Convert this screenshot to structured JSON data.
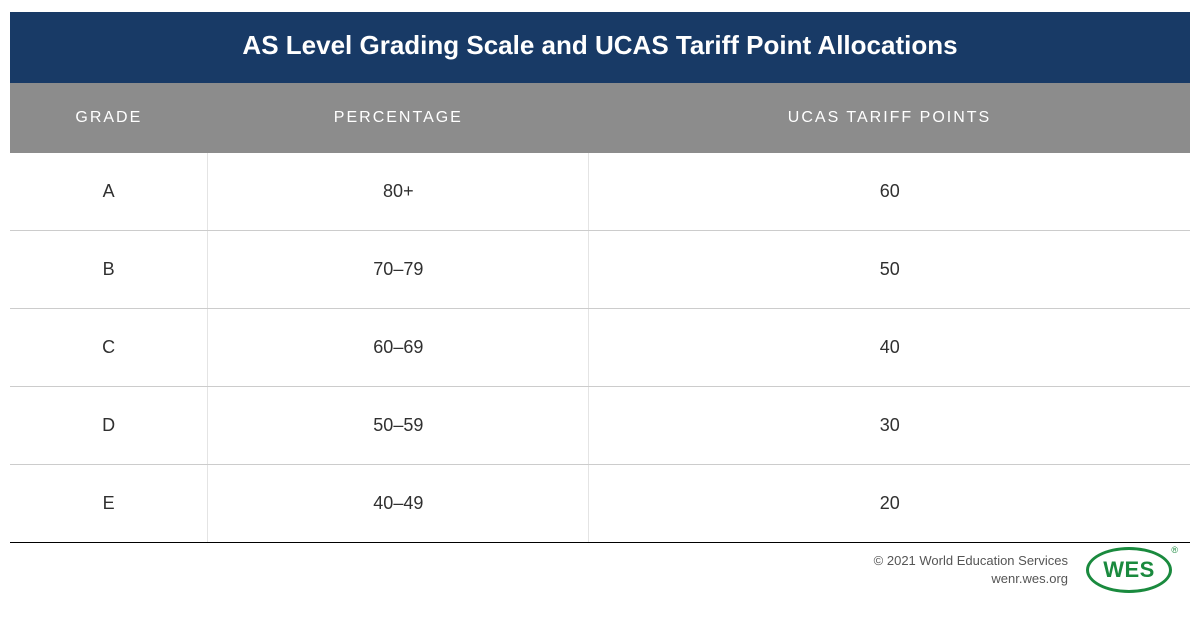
{
  "title": "AS Level Grading Scale and UCAS Tariff Point Allocations",
  "columns": [
    "GRADE",
    "PERCENTAGE",
    "UCAS TARIFF POINTS"
  ],
  "rows": [
    [
      "A",
      "80+",
      "60"
    ],
    [
      "B",
      "70–79",
      "50"
    ],
    [
      "C",
      "60–69",
      "40"
    ],
    [
      "D",
      "50–59",
      "30"
    ],
    [
      "E",
      "40–49",
      "20"
    ]
  ],
  "footer": {
    "copyright": "© 2021 World Education Services",
    "url": "wenr.wes.org"
  },
  "logo": {
    "text": "WES",
    "reg": "®"
  },
  "style": {
    "title_bg": "#183a66",
    "title_color": "#ffffff",
    "header_bg": "#8c8c8c",
    "header_color": "#ffffff",
    "cell_color": "#303030",
    "row_border_color": "#cccccc",
    "table_bottom_border_color": "#000000",
    "footer_text_color": "#555555",
    "logo_color": "#1a8a3e",
    "col_left_border": "#e4e4e4"
  }
}
